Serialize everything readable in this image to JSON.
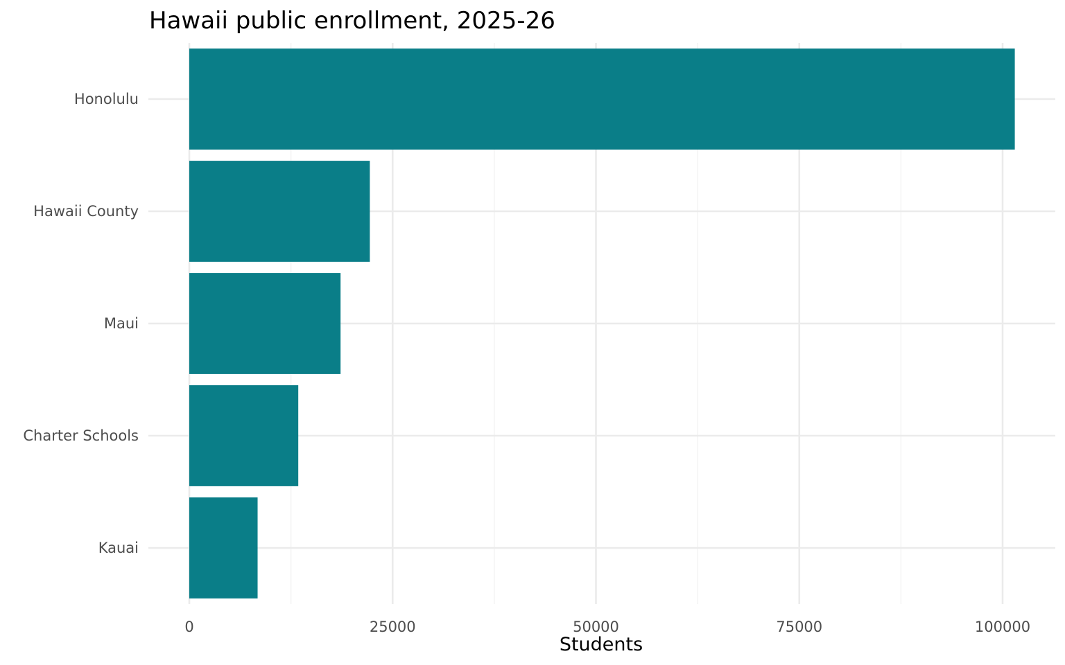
{
  "chart_data": {
    "type": "bar",
    "orientation": "horizontal",
    "title": "Hawaii public enrollment, 2025-26",
    "xlabel": "Students",
    "ylabel": "",
    "categories": [
      "Honolulu",
      "Hawaii County",
      "Maui",
      "Charter Schools",
      "Kauai"
    ],
    "values": [
      101500,
      22200,
      18600,
      13400,
      8400
    ],
    "xlim": [
      0,
      106000
    ],
    "x_ticks": [
      0,
      25000,
      50000,
      75000,
      100000
    ],
    "x_tick_labels": [
      "0",
      "25000",
      "50000",
      "75000",
      "100000"
    ],
    "grid": true,
    "legend": "none",
    "colors": {
      "bar": "#0a7e88",
      "grid_major": "#ebebeb",
      "grid_minor": "#f3f3f3",
      "tick_label": "#4d4d4d",
      "title": "#000000"
    }
  }
}
